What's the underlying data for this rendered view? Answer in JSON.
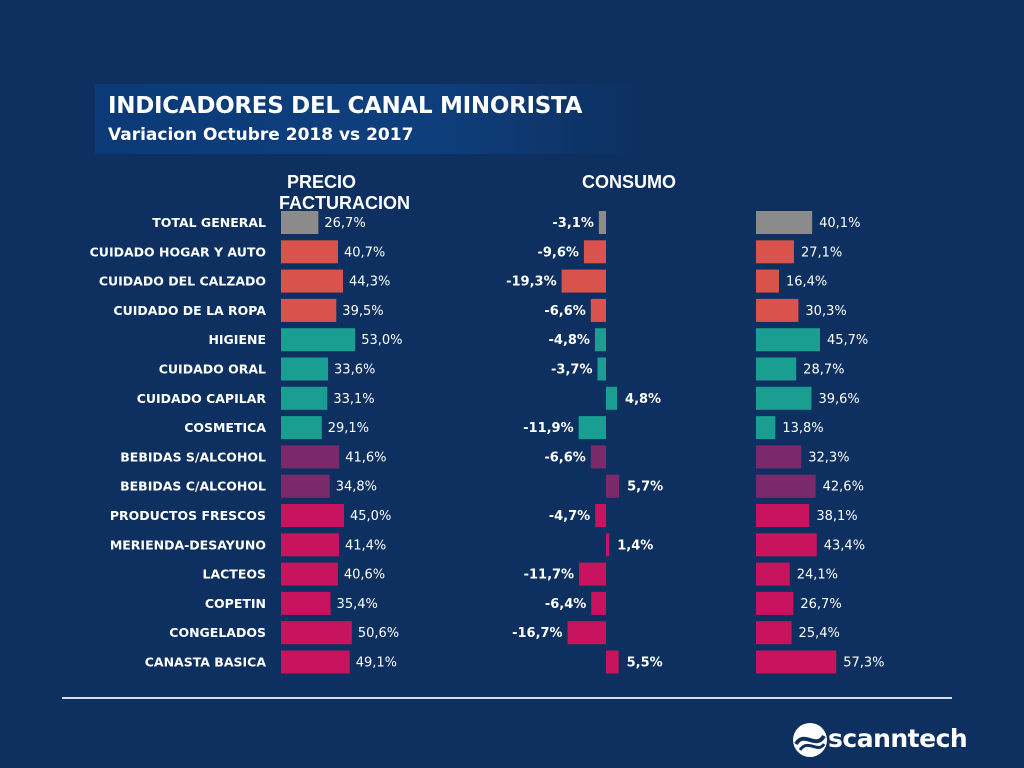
{
  "header": {
    "title": "INDICADORES DEL CANAL MINORISTA",
    "subtitle": "Variacion  Octubre 2018 vs 2017"
  },
  "columns": {
    "precio_line1": "PRECIO",
    "precio_line2": "FACTURACION",
    "consumo": "CONSUMO"
  },
  "colors": {
    "gray": "#8b8b8b",
    "red": "#d9534c",
    "teal": "#1a9e92",
    "purple": "#7a2a6b",
    "magenta": "#c8145e"
  },
  "chart_data": {
    "type": "bar",
    "categories": [
      "TOTAL GENERAL",
      "CUIDADO HOGAR Y AUTO",
      "CUIDADO DEL CALZADO",
      "CUIDADO DE LA ROPA",
      "HIGIENE",
      "CUIDADO ORAL",
      "CUIDADO CAPILAR",
      "COSMETICA",
      "BEBIDAS S/ALCOHOL",
      "BEBIDAS C/ALCOHOL",
      "PRODUCTOS FRESCOS",
      "MERIENDA-DESAYUNO",
      "LACTEOS",
      "COPETIN",
      "CONGELADOS",
      "CANASTA BASICA"
    ],
    "category_colors": [
      "gray",
      "red",
      "red",
      "red",
      "teal",
      "teal",
      "teal",
      "teal",
      "purple",
      "purple",
      "magenta",
      "magenta",
      "magenta",
      "magenta",
      "magenta",
      "magenta"
    ],
    "series": [
      {
        "name": "PRECIO FACTURACION",
        "values": [
          26.7,
          40.7,
          44.3,
          39.5,
          53.0,
          33.6,
          33.1,
          29.1,
          41.6,
          34.8,
          45.0,
          41.4,
          40.6,
          35.4,
          50.6,
          49.1
        ],
        "labels": [
          "26,7%",
          "40,7%",
          "44,3%",
          "39,5%",
          "53,0%",
          "33,6%",
          "33,1%",
          "29,1%",
          "41,6%",
          "34,8%",
          "45,0%",
          "41,4%",
          "40,6%",
          "35,4%",
          "50,6%",
          "49,1%"
        ]
      },
      {
        "name": "CONSUMO",
        "values": [
          -3.1,
          -9.6,
          -19.3,
          -6.6,
          -4.8,
          -3.7,
          4.8,
          -11.9,
          -6.6,
          5.7,
          -4.7,
          1.4,
          -11.7,
          -6.4,
          -16.7,
          5.5
        ],
        "labels": [
          "-3,1%",
          "-9,6%",
          "-19,3%",
          "-6,6%",
          "-4,8%",
          "-3,7%",
          "4,8%",
          "-11,9%",
          "-6,6%",
          "5,7%",
          "-4,7%",
          "1,4%",
          "-11,7%",
          "-6,4%",
          "-16,7%",
          "5,5%"
        ]
      },
      {
        "values": [
          40.1,
          27.1,
          16.4,
          30.3,
          45.7,
          28.7,
          39.6,
          13.8,
          32.3,
          42.6,
          38.1,
          43.4,
          24.1,
          26.7,
          25.4,
          57.3
        ],
        "labels": [
          "40,1%",
          "27,1%",
          "16,4%",
          "30,3%",
          "45,7%",
          "28,7%",
          "39,6%",
          "13,8%",
          "32,3%",
          "42,6%",
          "38,1%",
          "43,4%",
          "24,1%",
          "26,7%",
          "25,4%",
          "57,3%"
        ]
      }
    ],
    "grid": false,
    "legend": "none"
  },
  "brand": {
    "name": "scanntech"
  }
}
